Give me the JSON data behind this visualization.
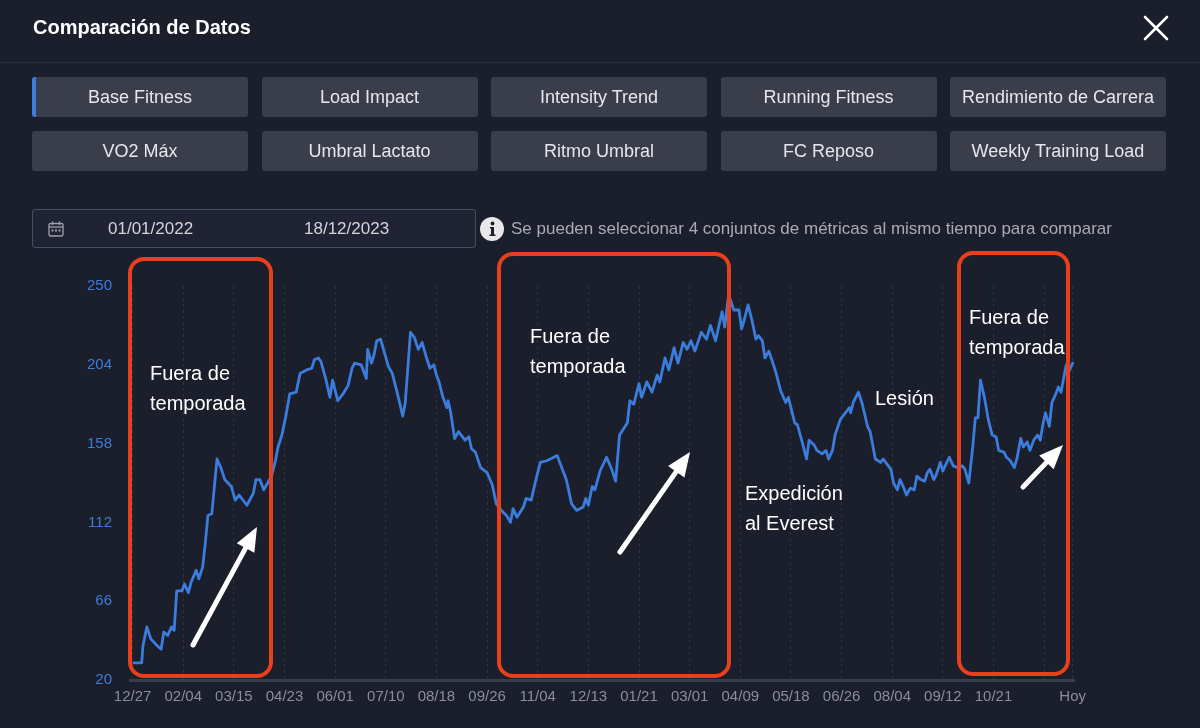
{
  "chart_data": {
    "type": "line",
    "title": "Comparación de Datos",
    "subtitle": "Se pueden seleccionar 4 conjuntos de métricas al mismo tiempo para comparar",
    "legend": "top",
    "grid": "x",
    "xlim": [
      "2021-12-25",
      "2023-12-22"
    ],
    "xticks": [
      {
        "value": "2021-12-27",
        "label": "12/27"
      },
      {
        "value": "2022-02-04",
        "label": "02/04"
      },
      {
        "value": "2022-03-15",
        "label": "03/15"
      },
      {
        "value": "2022-04-23",
        "label": "04/23"
      },
      {
        "value": "2022-06-01",
        "label": "06/01"
      },
      {
        "value": "2022-07-10",
        "label": "07/10"
      },
      {
        "value": "2022-08-18",
        "label": "08/18"
      },
      {
        "value": "2022-09-26",
        "label": "09/26"
      },
      {
        "value": "2022-11-04",
        "label": "11/04"
      },
      {
        "value": "2022-12-13",
        "label": "12/13"
      },
      {
        "value": "2023-01-21",
        "label": "01/21"
      },
      {
        "value": "2023-03-01",
        "label": "03/01"
      },
      {
        "value": "2023-04-09",
        "label": "04/09"
      },
      {
        "value": "2023-05-18",
        "label": "05/18"
      },
      {
        "value": "2023-06-26",
        "label": "06/26"
      },
      {
        "value": "2023-08-04",
        "label": "08/04"
      },
      {
        "value": "2023-09-12",
        "label": "09/12"
      },
      {
        "value": "2023-10-21",
        "label": "10/21"
      },
      {
        "value": "2023-11-29",
        "label": null
      },
      {
        "value": "2023-12-21",
        "label": "Hoy"
      }
    ],
    "ylim": [
      20,
      250
    ],
    "yticks": [
      20,
      66,
      112,
      158,
      204,
      250
    ],
    "x": [
      "2021-12-28",
      "2022-01-03",
      "2022-01-04",
      "2022-01-07",
      "2022-01-10",
      "2022-01-15",
      "2022-01-18",
      "2022-01-20",
      "2022-01-23",
      "2022-01-26",
      "2022-01-28",
      "2022-01-30",
      "2022-02-03",
      "2022-02-05",
      "2022-02-08",
      "2022-02-10",
      "2022-02-14",
      "2022-02-16",
      "2022-02-19",
      "2022-02-21",
      "2022-02-23",
      "2022-02-26",
      "2022-02-27",
      "2022-03-02",
      "2022-03-05",
      "2022-03-08",
      "2022-03-13",
      "2022-03-16",
      "2022-03-19",
      "2022-03-25",
      "2022-03-30",
      "2022-04-01",
      "2022-04-04",
      "2022-04-07",
      "2022-04-10",
      "2022-04-13",
      "2022-04-16",
      "2022-04-18",
      "2022-04-21",
      "2022-04-24",
      "2022-04-27",
      "2022-05-02",
      "2022-05-05",
      "2022-05-10",
      "2022-05-14",
      "2022-05-16",
      "2022-05-19",
      "2022-05-21",
      "2022-05-25",
      "2022-05-28",
      "2022-05-30",
      "2022-06-03",
      "2022-06-07",
      "2022-06-11",
      "2022-06-14",
      "2022-06-16",
      "2022-06-21",
      "2022-06-25",
      "2022-06-26",
      "2022-06-29",
      "2022-07-01",
      "2022-07-03",
      "2022-07-06",
      "2022-07-09",
      "2022-07-12",
      "2022-07-15",
      "2022-07-20",
      "2022-07-23",
      "2022-07-25",
      "2022-07-29",
      "2022-08-01",
      "2022-08-04",
      "2022-08-07",
      "2022-08-10",
      "2022-08-13",
      "2022-08-16",
      "2022-08-18",
      "2022-08-20",
      "2022-08-23",
      "2022-08-26",
      "2022-08-27",
      "2022-08-29",
      "2022-09-01",
      "2022-09-04",
      "2022-09-09",
      "2022-09-12",
      "2022-09-14",
      "2022-09-17",
      "2022-09-21",
      "2022-09-26",
      "2022-09-30",
      "2022-10-03",
      "2022-10-07",
      "2022-10-11",
      "2022-10-14",
      "2022-10-16",
      "2022-10-19",
      "2022-10-24",
      "2022-10-26",
      "2022-10-30",
      "2022-11-02",
      "2022-11-06",
      "2022-11-11",
      "2022-11-19",
      "2022-11-21",
      "2022-11-26",
      "2022-11-30",
      "2022-12-04",
      "2022-12-09",
      "2022-12-11",
      "2022-12-13",
      "2022-12-16",
      "2022-12-18",
      "2022-12-22",
      "2022-12-27",
      "2022-12-31",
      "2023-01-03",
      "2023-01-06",
      "2023-01-12",
      "2023-01-14",
      "2023-01-17",
      "2023-01-21",
      "2023-01-23",
      "2023-01-27",
      "2023-01-31",
      "2023-02-04",
      "2023-02-06",
      "2023-02-10",
      "2023-02-13",
      "2023-02-17",
      "2023-02-20",
      "2023-02-24",
      "2023-02-27",
      "2023-03-02",
      "2023-03-05",
      "2023-03-10",
      "2023-03-14",
      "2023-03-17",
      "2023-03-21",
      "2023-03-23",
      "2023-03-26",
      "2023-03-28",
      "2023-03-31",
      "2023-04-04",
      "2023-04-08",
      "2023-04-10",
      "2023-04-12",
      "2023-04-15",
      "2023-04-18",
      "2023-04-21",
      "2023-04-23",
      "2023-04-26",
      "2023-04-28",
      "2023-05-01",
      "2023-05-05",
      "2023-05-07",
      "2023-05-10",
      "2023-05-14",
      "2023-05-16",
      "2023-05-21",
      "2023-05-23",
      "2023-05-27",
      "2023-05-30",
      "2023-06-01",
      "2023-06-05",
      "2023-06-07",
      "2023-06-11",
      "2023-06-14",
      "2023-06-16",
      "2023-06-19",
      "2023-06-21",
      "2023-06-25",
      "2023-06-29",
      "2023-07-02",
      "2023-07-03",
      "2023-07-05",
      "2023-07-09",
      "2023-07-12",
      "2023-07-16",
      "2023-07-18",
      "2023-07-22",
      "2023-07-26",
      "2023-07-28",
      "2023-07-31",
      "2023-08-03",
      "2023-08-05",
      "2023-08-08",
      "2023-08-10",
      "2023-08-13",
      "2023-08-15",
      "2023-08-18",
      "2023-08-21",
      "2023-08-23",
      "2023-08-26",
      "2023-08-29",
      "2023-08-31",
      "2023-09-02",
      "2023-09-05",
      "2023-09-07",
      "2023-09-10",
      "2023-09-12",
      "2023-09-15",
      "2023-09-17",
      "2023-09-20",
      "2023-09-23",
      "2023-09-27",
      "2023-09-29",
      "2023-10-02",
      "2023-10-05",
      "2023-10-07",
      "2023-10-09",
      "2023-10-11",
      "2023-10-14",
      "2023-10-17",
      "2023-10-20",
      "2023-10-23",
      "2023-10-25",
      "2023-10-29",
      "2023-10-31",
      "2023-11-03",
      "2023-11-06",
      "2023-11-08",
      "2023-11-11",
      "2023-11-13",
      "2023-11-16",
      "2023-11-18",
      "2023-11-21",
      "2023-11-24",
      "2023-11-26",
      "2023-11-28",
      "2023-11-30",
      "2023-12-03",
      "2023-12-05",
      "2023-12-08",
      "2023-12-10",
      "2023-12-12",
      "2023-12-16",
      "2023-12-18",
      "2023-12-21"
    ],
    "series": [
      {
        "name": "Base Fitness",
        "color": "#3b7ddd",
        "values": [
          30,
          30,
          40,
          51,
          44,
          40,
          38,
          48,
          46,
          51,
          49,
          72,
          72,
          76,
          71,
          77,
          84,
          79,
          86,
          100,
          116,
          117,
          125,
          149,
          144,
          137,
          133,
          125,
          128,
          122,
          129,
          137,
          137,
          131,
          135,
          139,
          148,
          156,
          163,
          174,
          187,
          188,
          199,
          201,
          202,
          207,
          208,
          206,
          195,
          185,
          195,
          183,
          187,
          192,
          202,
          205,
          204,
          196,
          213,
          205,
          210,
          218,
          219,
          211,
          203,
          199,
          184,
          174,
          182,
          223,
          220,
          213,
          217,
          209,
          202,
          204,
          198,
          194,
          185,
          179,
          183,
          176,
          161,
          165,
          160,
          162,
          155,
          153,
          144,
          141,
          134,
          123,
          119,
          116,
          112,
          120,
          115,
          121,
          126,
          125,
          135,
          147,
          148,
          151,
          147,
          137,
          123,
          119,
          121,
          126,
          122,
          133,
          131,
          142,
          150,
          143,
          136,
          163,
          170,
          183,
          181,
          193,
          185,
          194,
          188,
          198,
          194,
          208,
          201,
          214,
          205,
          217,
          213,
          218,
          212,
          223,
          219,
          227,
          218,
          225,
          235,
          226,
          245,
          236,
          236,
          225,
          230,
          239,
          230,
          219,
          221,
          218,
          208,
          212,
          203,
          198,
          189,
          182,
          185,
          170,
          169,
          158,
          149,
          160,
          157,
          154,
          152,
          154,
          149,
          154,
          163,
          172,
          176,
          179,
          176,
          182,
          188,
          181,
          168,
          165,
          149,
          147,
          149,
          146,
          143,
          135,
          131,
          137,
          132,
          128,
          132,
          131,
          139,
          137,
          136,
          141,
          143,
          137,
          140,
          147,
          142,
          147,
          150,
          145,
          144,
          145,
          143,
          135,
          156,
          173,
          173,
          195,
          185,
          172,
          163,
          162,
          154,
          153,
          150,
          148,
          144,
          149,
          161,
          156,
          159,
          154,
          160,
          163,
          160,
          169,
          176,
          168,
          182,
          187,
          191,
          188,
          204,
          200,
          205
        ]
      }
    ],
    "annotations": [
      "Load Impact",
      "Intensity Trend",
      "Running Fitness",
      "Rendimiento de Carrera",
      "VO2 Máx",
      "Umbral Lactato",
      "Ritmo Umbral",
      "FC Reposo",
      "Weekly Training Load",
      "01/01/2022",
      "18/12/2023",
      "Fuera de temporada",
      "Fuera de temporada",
      "Fuera de temporada",
      "Expedición al Everest",
      "Lesión"
    ]
  }
}
